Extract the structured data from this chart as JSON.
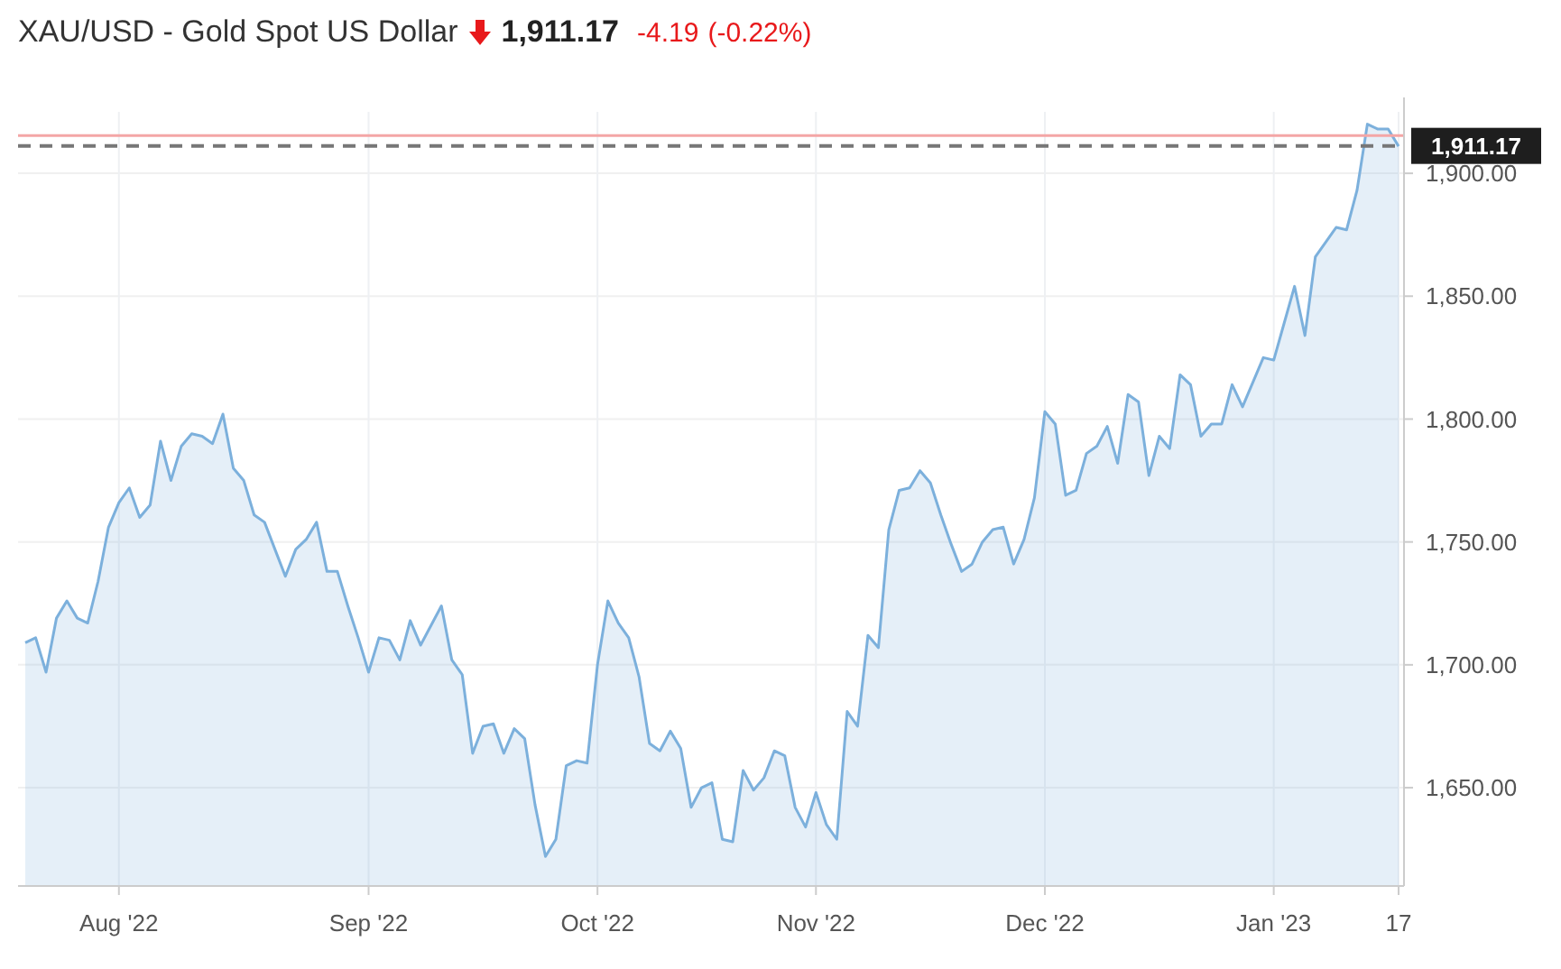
{
  "chart_data": {
    "type": "area",
    "title": "XAU/USD - Gold Spot US Dollar",
    "annotations": [
      "1,911.17",
      "-4.19",
      "(-0.22%)"
    ],
    "categories": [
      null,
      null,
      null,
      null,
      null,
      null,
      null,
      null,
      null,
      "Aug '22",
      null,
      null,
      null,
      null,
      null,
      null,
      null,
      null,
      null,
      null,
      null,
      null,
      null,
      null,
      null,
      null,
      null,
      null,
      null,
      null,
      null,
      null,
      null,
      "Sep '22",
      null,
      null,
      null,
      null,
      null,
      null,
      null,
      null,
      null,
      null,
      null,
      null,
      null,
      null,
      null,
      null,
      null,
      null,
      null,
      null,
      null,
      "Oct '22",
      null,
      null,
      null,
      null,
      null,
      null,
      null,
      null,
      null,
      null,
      null,
      null,
      null,
      null,
      null,
      null,
      null,
      null,
      null,
      null,
      "Nov '22",
      null,
      null,
      null,
      null,
      null,
      null,
      null,
      null,
      null,
      null,
      null,
      null,
      null,
      null,
      null,
      null,
      null,
      null,
      null,
      null,
      null,
      "Dec '22",
      null,
      null,
      null,
      null,
      null,
      null,
      null,
      null,
      null,
      null,
      null,
      null,
      null,
      null,
      null,
      null,
      null,
      null,
      null,
      null,
      null,
      "Jan '23",
      null,
      null,
      null,
      null,
      null,
      null,
      null,
      null,
      null,
      null,
      null,
      "17"
    ],
    "series": [
      {
        "color": "#7cb0dc",
        "values": [
          1709,
          1711,
          1697,
          1719,
          1726,
          1719,
          1717,
          1734,
          1756,
          1766,
          1772,
          1760,
          1765,
          1791,
          1775,
          1789,
          1794,
          1793,
          1790,
          1802,
          1780,
          1775,
          1761,
          1758,
          1747,
          1736,
          1747,
          1751,
          1758,
          1738,
          1738,
          1724,
          1711,
          1697,
          1711,
          1710,
          1702,
          1718,
          1708,
          1716,
          1724,
          1702,
          1696,
          1664,
          1675,
          1676,
          1664,
          1674,
          1670,
          1643,
          1622,
          1629,
          1659,
          1661,
          1660,
          1700,
          1726,
          1717,
          1711,
          1695,
          1668,
          1665,
          1673,
          1666,
          1642,
          1650,
          1652,
          1629,
          1628,
          1657,
          1649,
          1654,
          1665,
          1663,
          1642,
          1634,
          1648,
          1635,
          1629,
          1681,
          1675,
          1712,
          1707,
          1755,
          1771,
          1772,
          1779,
          1774,
          1761,
          1749,
          1738,
          1741,
          1750,
          1755,
          1756,
          1741,
          1751,
          1768,
          1803,
          1798,
          1769,
          1771,
          1786,
          1789,
          1797,
          1782,
          1810,
          1807,
          1777,
          1793,
          1788,
          1818,
          1814,
          1793,
          1798,
          1798,
          1814,
          1805,
          1815,
          1825,
          1824,
          1839,
          1854,
          1834,
          1866,
          1872,
          1878,
          1877,
          1893,
          1920,
          1918,
          1918,
          1911
        ]
      }
    ],
    "ylim": [
      1610,
      1925
    ],
    "yticks": [
      {
        "value": 1650,
        "label": "1,650.00"
      },
      {
        "value": 1700,
        "label": "1,700.00"
      },
      {
        "value": 1750,
        "label": "1,750.00"
      },
      {
        "value": 1800,
        "label": "1,800.00"
      },
      {
        "value": 1850,
        "label": "1,850.00"
      },
      {
        "value": 1900,
        "label": "1,900.00"
      }
    ],
    "ref_lines": [
      {
        "axis": "y",
        "value": 1915.36,
        "color": "#f4a6a6"
      },
      {
        "axis": "y",
        "value": 1911.17,
        "label": "1,911.17",
        "color": "#777777",
        "line_style": "dashed"
      }
    ],
    "grid": true
  }
}
